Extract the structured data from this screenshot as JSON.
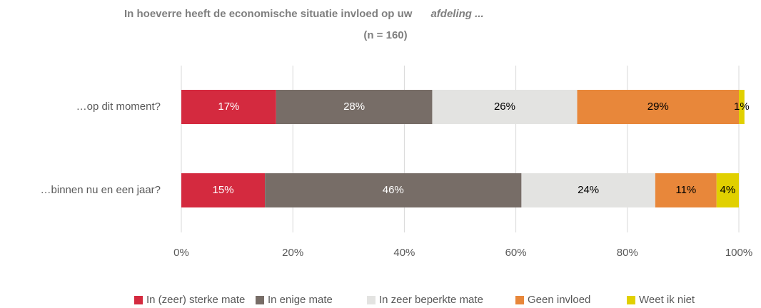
{
  "chart_data": {
    "type": "stacked_bar_horizontal",
    "title": "In hoeverre heeft de economische situatie invloed op uw",
    "title_emphasis": "afdeling ...",
    "subtitle": "(n = 160)",
    "categories": [
      "…op dit moment?",
      "…binnen nu en een jaar?"
    ],
    "series": [
      {
        "name": "In (zeer) sterke mate",
        "color": "#d42a3f",
        "label_color": "#ffffff",
        "values": [
          17,
          15
        ],
        "value_labels": [
          "17%",
          "15%"
        ]
      },
      {
        "name": "In enige mate",
        "color": "#776d67",
        "label_color": "#ffffff",
        "values": [
          28,
          46
        ],
        "value_labels": [
          "28%",
          "46%"
        ]
      },
      {
        "name": "In zeer beperkte mate",
        "color": "#e3e3e1",
        "label_color": "#000000",
        "values": [
          26,
          24
        ],
        "value_labels": [
          "26%",
          "24%"
        ]
      },
      {
        "name": "Geen invloed",
        "color": "#e8873a",
        "label_color": "#000000",
        "values": [
          29,
          11
        ],
        "value_labels": [
          "29%",
          "11%"
        ]
      },
      {
        "name": "Weet ik niet",
        "color": "#e1d000",
        "label_color": "#000000",
        "values": [
          1,
          4
        ],
        "value_labels": [
          "1%",
          "4%"
        ]
      }
    ],
    "xlim": [
      0,
      100
    ],
    "xticks": [
      {
        "value": 0,
        "label": "0%"
      },
      {
        "value": 20,
        "label": "20%"
      },
      {
        "value": 40,
        "label": "40%"
      },
      {
        "value": 60,
        "label": "60%"
      },
      {
        "value": 80,
        "label": "80%"
      },
      {
        "value": 100,
        "label": "100%"
      }
    ],
    "grid": true,
    "legend": "bottom"
  }
}
